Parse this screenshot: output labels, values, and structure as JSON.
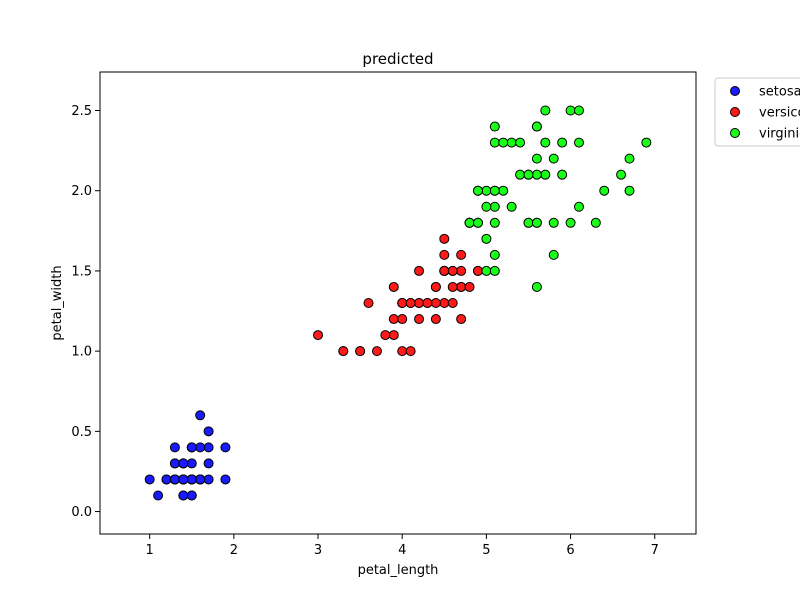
{
  "chart_data": {
    "type": "scatter",
    "title": "predicted",
    "xlabel": "petal_length",
    "ylabel": "petal_width",
    "xlim": [
      0.41,
      7.49
    ],
    "ylim": [
      -0.14,
      2.74
    ],
    "xticks": [
      "1",
      "2",
      "3",
      "4",
      "5",
      "6",
      "7"
    ],
    "yticks": [
      "0.0",
      "0.5",
      "1.0",
      "1.5",
      "2.0",
      "2.5"
    ],
    "grid": false,
    "legend_position": "outside-top-right",
    "series": [
      {
        "name": "setosa",
        "color": "#1a1aff",
        "points": [
          [
            1.4,
            0.2
          ],
          [
            1.4,
            0.2
          ],
          [
            1.3,
            0.2
          ],
          [
            1.5,
            0.2
          ],
          [
            1.4,
            0.2
          ],
          [
            1.7,
            0.4
          ],
          [
            1.4,
            0.3
          ],
          [
            1.5,
            0.2
          ],
          [
            1.4,
            0.2
          ],
          [
            1.5,
            0.1
          ],
          [
            1.5,
            0.2
          ],
          [
            1.6,
            0.2
          ],
          [
            1.4,
            0.1
          ],
          [
            1.1,
            0.1
          ],
          [
            1.2,
            0.2
          ],
          [
            1.5,
            0.4
          ],
          [
            1.3,
            0.4
          ],
          [
            1.4,
            0.3
          ],
          [
            1.7,
            0.3
          ],
          [
            1.5,
            0.3
          ],
          [
            1.7,
            0.2
          ],
          [
            1.5,
            0.4
          ],
          [
            1.0,
            0.2
          ],
          [
            1.7,
            0.5
          ],
          [
            1.9,
            0.2
          ],
          [
            1.6,
            0.2
          ],
          [
            1.6,
            0.4
          ],
          [
            1.5,
            0.2
          ],
          [
            1.4,
            0.2
          ],
          [
            1.6,
            0.2
          ],
          [
            1.6,
            0.2
          ],
          [
            1.5,
            0.4
          ],
          [
            1.5,
            0.1
          ],
          [
            1.4,
            0.2
          ],
          [
            1.5,
            0.2
          ],
          [
            1.2,
            0.2
          ],
          [
            1.3,
            0.2
          ],
          [
            1.4,
            0.1
          ],
          [
            1.3,
            0.2
          ],
          [
            1.5,
            0.2
          ],
          [
            1.3,
            0.3
          ],
          [
            1.3,
            0.3
          ],
          [
            1.3,
            0.2
          ],
          [
            1.6,
            0.6
          ],
          [
            1.9,
            0.4
          ],
          [
            1.4,
            0.3
          ],
          [
            1.6,
            0.2
          ],
          [
            1.4,
            0.2
          ],
          [
            1.5,
            0.2
          ],
          [
            1.4,
            0.2
          ]
        ]
      },
      {
        "name": "versicolor",
        "color": "#ff1a1a",
        "points": [
          [
            4.7,
            1.4
          ],
          [
            4.5,
            1.5
          ],
          [
            4.0,
            1.3
          ],
          [
            4.6,
            1.5
          ],
          [
            4.5,
            1.3
          ],
          [
            4.7,
            1.6
          ],
          [
            3.3,
            1.0
          ],
          [
            4.6,
            1.3
          ],
          [
            3.9,
            1.4
          ],
          [
            3.5,
            1.0
          ],
          [
            4.2,
            1.5
          ],
          [
            4.0,
            1.0
          ],
          [
            4.7,
            1.4
          ],
          [
            3.6,
            1.3
          ],
          [
            4.4,
            1.4
          ],
          [
            4.5,
            1.5
          ],
          [
            4.1,
            1.0
          ],
          [
            4.5,
            1.5
          ],
          [
            3.9,
            1.1
          ],
          [
            4.8,
            1.8
          ],
          [
            4.0,
            1.3
          ],
          [
            4.9,
            1.5
          ],
          [
            4.7,
            1.2
          ],
          [
            4.3,
            1.3
          ],
          [
            4.4,
            1.4
          ],
          [
            4.8,
            1.4
          ],
          [
            3.5,
            1.0
          ],
          [
            3.8,
            1.1
          ],
          [
            3.7,
            1.0
          ],
          [
            3.9,
            1.2
          ],
          [
            4.5,
            1.6
          ],
          [
            4.5,
            1.5
          ],
          [
            4.7,
            1.5
          ],
          [
            4.4,
            1.3
          ],
          [
            4.1,
            1.3
          ],
          [
            4.0,
            1.3
          ],
          [
            4.4,
            1.2
          ],
          [
            4.6,
            1.4
          ],
          [
            4.0,
            1.2
          ],
          [
            3.3,
            1.0
          ],
          [
            4.2,
            1.3
          ],
          [
            4.2,
            1.2
          ],
          [
            4.2,
            1.3
          ],
          [
            4.3,
            1.3
          ],
          [
            3.0,
            1.1
          ],
          [
            4.1,
            1.3
          ],
          [
            4.5,
            1.7
          ],
          [
            4.9,
            1.5
          ],
          [
            4.6,
            1.5
          ],
          [
            4.8,
            1.8
          ]
        ]
      },
      {
        "name": "virginica",
        "color": "#1aff1a",
        "points": [
          [
            6.0,
            2.5
          ],
          [
            5.1,
            1.9
          ],
          [
            5.9,
            2.1
          ],
          [
            5.6,
            1.8
          ],
          [
            5.8,
            2.2
          ],
          [
            6.6,
            2.1
          ],
          [
            5.8,
            1.8
          ],
          [
            6.1,
            2.5
          ],
          [
            5.1,
            2.0
          ],
          [
            5.3,
            1.9
          ],
          [
            5.5,
            2.1
          ],
          [
            5.0,
            2.0
          ],
          [
            5.1,
            2.4
          ],
          [
            5.3,
            2.3
          ],
          [
            5.5,
            1.8
          ],
          [
            6.7,
            2.2
          ],
          [
            6.9,
            2.3
          ],
          [
            5.0,
            1.5
          ],
          [
            5.7,
            2.3
          ],
          [
            4.9,
            2.0
          ],
          [
            6.7,
            2.0
          ],
          [
            4.9,
            1.8
          ],
          [
            5.7,
            2.1
          ],
          [
            6.0,
            1.8
          ],
          [
            4.8,
            1.8
          ],
          [
            4.9,
            1.8
          ],
          [
            5.6,
            2.1
          ],
          [
            5.8,
            1.6
          ],
          [
            6.1,
            1.9
          ],
          [
            6.4,
            2.0
          ],
          [
            5.6,
            2.2
          ],
          [
            5.1,
            1.5
          ],
          [
            5.6,
            1.4
          ],
          [
            6.1,
            2.3
          ],
          [
            5.6,
            2.4
          ],
          [
            5.5,
            1.8
          ],
          [
            5.4,
            2.1
          ],
          [
            5.6,
            2.4
          ],
          [
            5.1,
            2.3
          ],
          [
            5.9,
            2.3
          ],
          [
            5.7,
            2.5
          ],
          [
            5.2,
            2.3
          ],
          [
            5.0,
            1.9
          ],
          [
            5.2,
            2.0
          ],
          [
            5.4,
            2.3
          ],
          [
            5.1,
            1.8
          ],
          [
            5.0,
            1.7
          ],
          [
            5.1,
            1.6
          ],
          [
            6.3,
            1.8
          ],
          [
            5.1,
            2.0
          ],
          [
            5.6,
            1.8
          ],
          [
            5.5,
            2.1
          ],
          [
            4.9,
            2.0
          ]
        ]
      }
    ]
  }
}
